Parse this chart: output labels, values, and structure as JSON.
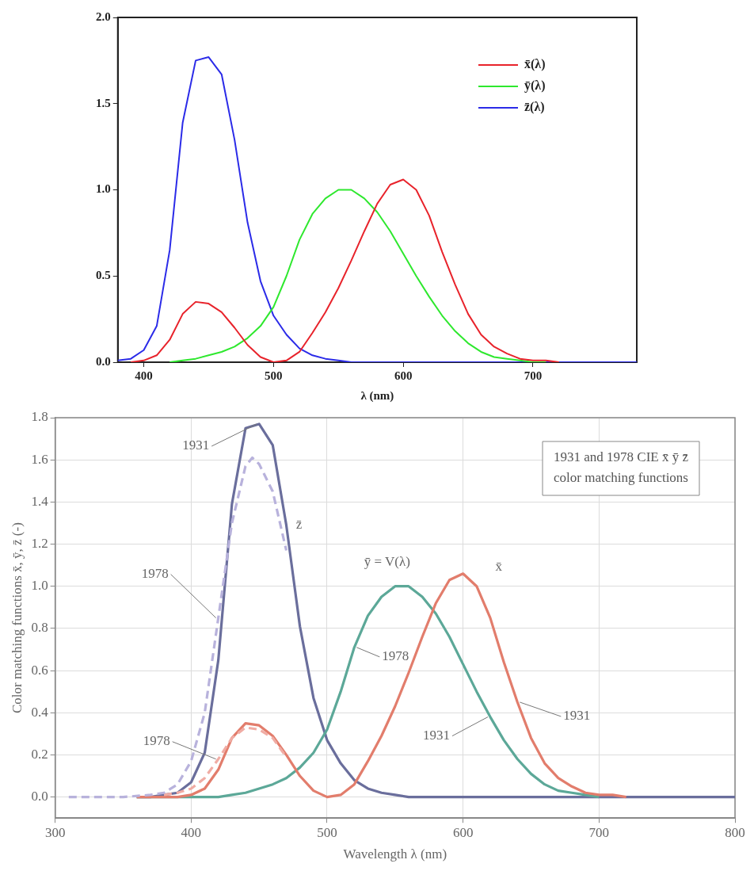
{
  "chart_data": [
    {
      "type": "line",
      "xlabel": "λ (nm)",
      "xlim": [
        380,
        780
      ],
      "xticks": [
        400,
        500,
        600,
        700
      ],
      "ylim": [
        0,
        2
      ],
      "yticks": [
        {
          "value": 0,
          "label": "0.0"
        },
        {
          "value": 0.5,
          "label": "0.5"
        },
        {
          "value": 1,
          "label": "1.0"
        },
        {
          "value": 1.5,
          "label": "1.5"
        },
        {
          "value": 2,
          "label": "2.0"
        }
      ],
      "grid": false,
      "legend": "top right",
      "x": [
        380,
        390,
        400,
        410,
        420,
        430,
        440,
        450,
        460,
        470,
        480,
        490,
        500,
        510,
        520,
        530,
        540,
        550,
        560,
        570,
        580,
        590,
        600,
        610,
        620,
        630,
        640,
        650,
        660,
        670,
        680,
        690,
        700,
        710,
        720,
        730,
        740,
        750,
        760,
        770,
        780
      ],
      "series": [
        {
          "name": "x̄(λ)",
          "color": "#e8232b",
          "values": [
            null,
            0,
            0.01,
            0.04,
            0.13,
            0.28,
            0.35,
            0.34,
            0.29,
            0.2,
            0.1,
            0.03,
            0,
            0.01,
            0.06,
            0.17,
            0.29,
            0.43,
            0.59,
            0.76,
            0.92,
            1.03,
            1.06,
            1,
            0.85,
            0.64,
            0.45,
            0.28,
            0.16,
            0.09,
            0.05,
            0.02,
            0.01,
            0.01,
            0,
            null,
            null,
            null,
            null,
            null,
            null
          ]
        },
        {
          "name": "ȳ(λ)",
          "color": "#2ee82e",
          "values": [
            null,
            null,
            null,
            null,
            0,
            0.01,
            0.02,
            0.04,
            0.06,
            0.09,
            0.14,
            0.21,
            0.32,
            0.5,
            0.71,
            0.86,
            0.95,
            1,
            1,
            0.95,
            0.87,
            0.76,
            0.63,
            0.5,
            0.38,
            0.27,
            0.18,
            0.11,
            0.06,
            0.03,
            0.02,
            0.01,
            0,
            0,
            null,
            null,
            null,
            null,
            null,
            null,
            null
          ]
        },
        {
          "name": "z̄(λ)",
          "color": "#2b2be8",
          "values": [
            0.01,
            0.02,
            0.07,
            0.21,
            0.65,
            1.39,
            1.75,
            1.77,
            1.67,
            1.29,
            0.81,
            0.47,
            0.27,
            0.16,
            0.08,
            0.04,
            0.02,
            0.01,
            0,
            0,
            0,
            0,
            0,
            0,
            0,
            0,
            0,
            0,
            0,
            0,
            0,
            0,
            0,
            0,
            0,
            0,
            0,
            0,
            0,
            0,
            0
          ]
        }
      ]
    },
    {
      "type": "line",
      "title": "1931 and 1978 CIE x̄ ȳ z̄ color matching functions",
      "xlabel": "Wavelength λ (nm)",
      "ylabel": "Color matching functions x̄, ȳ, z̄ (-)",
      "xlim": [
        300,
        800
      ],
      "xticks": [
        300,
        400,
        500,
        600,
        700,
        800
      ],
      "ylim": [
        -0.1,
        1.8
      ],
      "yticks": [
        {
          "value": 0,
          "label": "0.0"
        },
        {
          "value": 0.2,
          "label": "0.2"
        },
        {
          "value": 0.4,
          "label": "0.4"
        },
        {
          "value": 0.6,
          "label": "0.6"
        },
        {
          "value": 0.8,
          "label": "0.8"
        },
        {
          "value": 1,
          "label": "1.0"
        },
        {
          "value": 1.2,
          "label": "1.2"
        },
        {
          "value": 1.4,
          "label": "1.4"
        },
        {
          "value": 1.6,
          "label": "1.6"
        },
        {
          "value": 1.8,
          "label": "1.8"
        }
      ],
      "grid": true,
      "x": [
        360,
        370,
        380,
        390,
        400,
        410,
        420,
        430,
        440,
        450,
        460,
        470,
        480,
        490,
        500,
        510,
        520,
        530,
        540,
        550,
        560,
        570,
        580,
        590,
        600,
        610,
        620,
        630,
        640,
        650,
        660,
        670,
        680,
        690,
        700,
        710,
        720,
        730,
        740,
        750,
        760,
        770,
        780,
        790,
        800
      ],
      "series": [
        {
          "color": "#b8b2dc",
          "line_style": "dashed",
          "x": [
            310,
            350,
            370,
            380,
            390,
            400,
            410,
            420,
            430,
            440,
            445,
            450,
            460,
            470
          ],
          "values": [
            0,
            0,
            0.01,
            0.02,
            0.06,
            0.17,
            0.4,
            0.85,
            1.3,
            1.57,
            1.61,
            1.58,
            1.45,
            1.17
          ]
        },
        {
          "color": "#f0aca4",
          "line_style": "dashed",
          "x": [
            380,
            390,
            400,
            410,
            420,
            430,
            440,
            450,
            460,
            470
          ],
          "values": [
            0.01,
            0.02,
            0.04,
            0.09,
            0.18,
            0.28,
            0.33,
            0.32,
            0.28,
            0.19
          ]
        },
        {
          "color": "#e27d6c",
          "line_style": "solid",
          "values": [
            0,
            0,
            0,
            0,
            0.01,
            0.04,
            0.13,
            0.28,
            0.35,
            0.34,
            0.29,
            0.2,
            0.1,
            0.03,
            0,
            0.01,
            0.06,
            0.17,
            0.29,
            0.43,
            0.59,
            0.76,
            0.92,
            1.03,
            1.06,
            1,
            0.85,
            0.64,
            0.45,
            0.28,
            0.16,
            0.09,
            0.05,
            0.02,
            0.01,
            0.01,
            0,
            null,
            null,
            null,
            null,
            null,
            null,
            null,
            null
          ]
        },
        {
          "color": "#5ca898",
          "line_style": "solid",
          "values": [
            0,
            0,
            0,
            0,
            0,
            0,
            0,
            0.01,
            0.02,
            0.04,
            0.06,
            0.09,
            0.14,
            0.21,
            0.32,
            0.5,
            0.71,
            0.86,
            0.95,
            1,
            1,
            0.95,
            0.87,
            0.76,
            0.63,
            0.5,
            0.38,
            0.27,
            0.18,
            0.11,
            0.06,
            0.03,
            0.02,
            0.01,
            0,
            null,
            null,
            null,
            null,
            null,
            null,
            null,
            null,
            null,
            null
          ]
        },
        {
          "color": "#6a6e9c",
          "line_style": "solid",
          "values": [
            0,
            0,
            0.01,
            0.02,
            0.07,
            0.21,
            0.65,
            1.39,
            1.75,
            1.77,
            1.67,
            1.29,
            0.81,
            0.47,
            0.27,
            0.16,
            0.08,
            0.04,
            0.02,
            0.01,
            0,
            0,
            0,
            0,
            0,
            0,
            0,
            0,
            0,
            0,
            0,
            0,
            0,
            0,
            0,
            0,
            0,
            0,
            0,
            0,
            0,
            0,
            0,
            0,
            0
          ]
        }
      ],
      "annotations": [
        {
          "text": "1931",
          "x": 450,
          "y": 1.77
        },
        {
          "text": "1978",
          "x": 420,
          "y": 0.85
        },
        {
          "text": "z̄",
          "x": 470,
          "y": 1.29
        },
        {
          "text": "ȳ = V(λ)",
          "x": 550,
          "y": 1
        },
        {
          "text": "x̄",
          "x": 600,
          "y": 1.06
        },
        {
          "text": "1978",
          "x": 520,
          "y": 0.71
        },
        {
          "text": "1931",
          "x": 640,
          "y": 0.45
        },
        {
          "text": "1931",
          "x": 620,
          "y": 0.38
        },
        {
          "text": "1978",
          "x": 420,
          "y": 0.18
        }
      ]
    }
  ]
}
